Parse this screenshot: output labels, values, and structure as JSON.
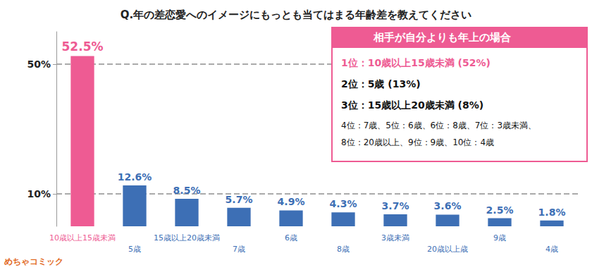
{
  "chart_data": {
    "type": "bar",
    "title": "Q.年の差恋愛へのイメージにもっとも当てはまる年齢差を教えてください",
    "categories": [
      "10歳以上15歳未満",
      "5歳",
      "15歳以上20歳未満",
      "7歳",
      "6歳",
      "8歳",
      "3歳未満",
      "20歳以上歳",
      "9歳",
      "4歳"
    ],
    "values": [
      52.5,
      12.6,
      8.5,
      5.7,
      4.9,
      4.3,
      3.7,
      3.6,
      2.5,
      1.8
    ],
    "value_labels": [
      "52.5%",
      "12.6%",
      "8.5%",
      "5.7%",
      "4.9%",
      "4.3%",
      "3.7%",
      "3.6%",
      "2.5%",
      "1.8%"
    ],
    "colors": [
      "#ee5b93",
      "#3d6fb5",
      "#3d6fb5",
      "#3d6fb5",
      "#3d6fb5",
      "#3d6fb5",
      "#3d6fb5",
      "#3d6fb5",
      "#3d6fb5",
      "#3d6fb5"
    ],
    "ylim": [
      0,
      60
    ],
    "yticks": [
      {
        "value": 10,
        "label": "10%"
      },
      {
        "value": 50,
        "label": "50%"
      }
    ],
    "grid": true,
    "data_labels": true,
    "annotations": {
      "title": "相手が自分よりも年上の場合",
      "lines": [
        "1位：10歳以上15歳未満 (52%)",
        "2位：5歳 (13%)",
        "3位：15歳以上20歳未満 (8%)",
        "4位：7歳、5位：6歳、6位：8歳、7位：3歳未満、",
        "8位：20歳以上、9位：9歳、10位：4歳"
      ]
    },
    "watermark": "めちゃコミック"
  }
}
